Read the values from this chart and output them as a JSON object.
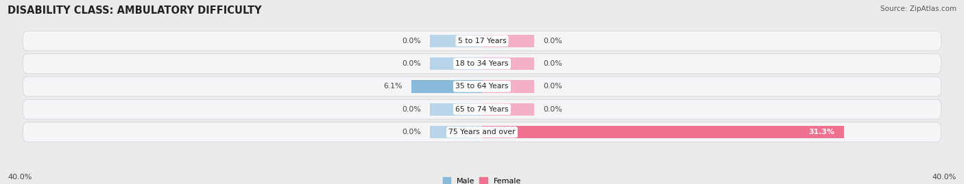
{
  "title": "DISABILITY CLASS: AMBULATORY DIFFICULTY",
  "source": "Source: ZipAtlas.com",
  "categories": [
    "5 to 17 Years",
    "18 to 34 Years",
    "35 to 64 Years",
    "65 to 74 Years",
    "75 Years and over"
  ],
  "male_values": [
    0.0,
    0.0,
    6.1,
    0.0,
    0.0
  ],
  "female_values": [
    0.0,
    0.0,
    0.0,
    0.0,
    31.3
  ],
  "male_bar_color": "#89b8d8",
  "female_bar_color": "#f07090",
  "male_stub_color": "#b8d4e8",
  "female_stub_color": "#f4b0c4",
  "stub_value": 4.5,
  "axis_max": 40.0,
  "axis_label_left": "40.0%",
  "axis_label_right": "40.0%",
  "bg_color": "#ebebeb",
  "row_bg_color": "#f5f5f7",
  "title_fontsize": 10.5,
  "source_fontsize": 7.5,
  "label_fontsize": 7.8,
  "cat_fontsize": 7.8
}
